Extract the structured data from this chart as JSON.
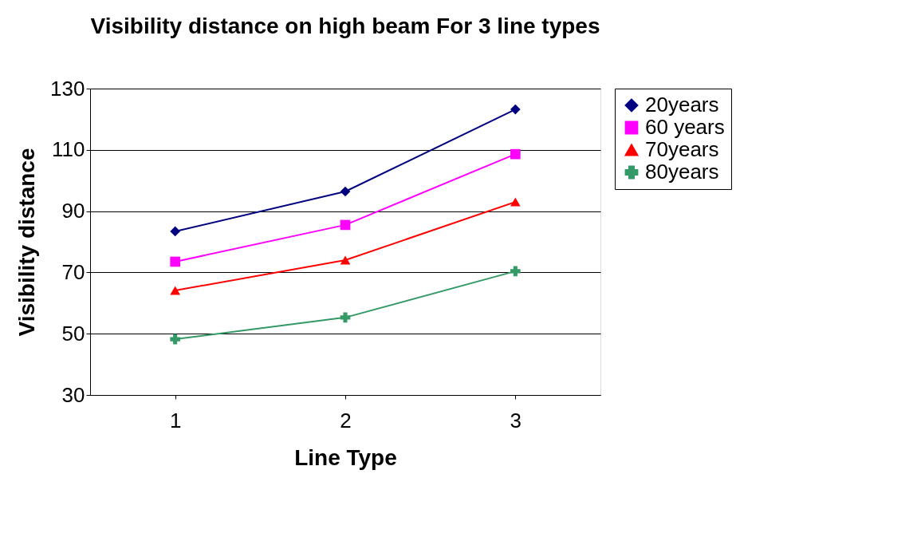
{
  "chart_data": {
    "type": "line",
    "title": "Visibility distance on high beam For 3 line types",
    "xlabel": "Line Type",
    "ylabel": "Visibility distance",
    "categories": [
      "1",
      "2",
      "3"
    ],
    "series": [
      {
        "name": "20years",
        "color": "#000080",
        "marker": "diamond",
        "values": [
          83.4,
          96.4,
          123.2
        ]
      },
      {
        "name": "60 years",
        "color": "#ff00ff",
        "marker": "square",
        "values": [
          73.5,
          85.5,
          108.6
        ]
      },
      {
        "name": "70years",
        "color": "#ff0000",
        "marker": "triangle",
        "values": [
          64.1,
          74,
          93
        ]
      },
      {
        "name": "80years",
        "color": "#339966",
        "marker": "cross",
        "values": [
          48.2,
          55.3,
          70.4
        ]
      }
    ],
    "ylim": [
      30,
      130
    ],
    "yticks": [
      30,
      50,
      70,
      90,
      110,
      130
    ],
    "grid": "y",
    "legend": "right",
    "line_style": "solid"
  }
}
